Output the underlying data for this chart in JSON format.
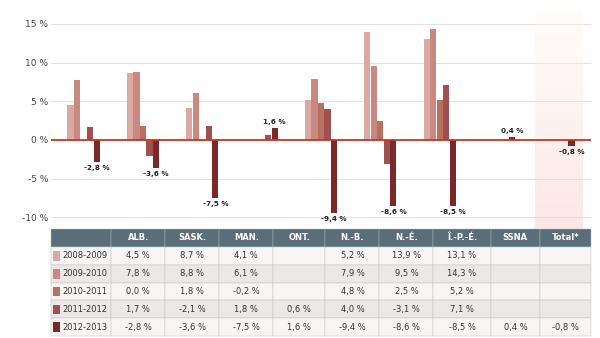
{
  "categories": [
    "ALB.",
    "SASK.",
    "MAN.",
    "ONT.",
    "N.-B.",
    "N.-É.",
    "Î.-P.-É.",
    "SSNA",
    "Total*"
  ],
  "series": [
    {
      "label": "2008-2009",
      "color": "#dba9a4",
      "values": [
        4.5,
        8.7,
        4.1,
        null,
        5.2,
        13.9,
        13.1,
        null,
        null
      ]
    },
    {
      "label": "2009-2010",
      "color": "#c98880",
      "values": [
        7.8,
        8.8,
        6.1,
        null,
        7.9,
        9.5,
        14.3,
        null,
        null
      ]
    },
    {
      "label": "2010-2011",
      "color": "#b87060",
      "values": [
        0.0,
        1.8,
        -0.2,
        null,
        4.8,
        2.5,
        5.2,
        null,
        null
      ]
    },
    {
      "label": "2011-2012",
      "color": "#a05050",
      "values": [
        1.7,
        -2.1,
        1.8,
        0.6,
        4.0,
        -3.1,
        7.1,
        null,
        null
      ]
    },
    {
      "label": "2012-2013",
      "color": "#7a2828",
      "values": [
        -2.8,
        -3.6,
        -7.5,
        1.6,
        -9.4,
        -8.6,
        -8.5,
        0.4,
        -0.8
      ]
    }
  ],
  "bar_labels": [
    {
      "cat_idx": 0,
      "value": -2.8,
      "label": "-2,8 %"
    },
    {
      "cat_idx": 1,
      "value": -3.6,
      "label": "-3,6 %"
    },
    {
      "cat_idx": 2,
      "value": -7.5,
      "label": "-7,5 %"
    },
    {
      "cat_idx": 3,
      "value": 1.6,
      "label": "1,6 %"
    },
    {
      "cat_idx": 4,
      "value": -9.4,
      "label": "-9,4 %"
    },
    {
      "cat_idx": 5,
      "value": -8.6,
      "label": "-8,6 %"
    },
    {
      "cat_idx": 6,
      "value": -8.5,
      "label": "-8,5 %"
    },
    {
      "cat_idx": 7,
      "value": 0.4,
      "label": "0,4 %"
    },
    {
      "cat_idx": 8,
      "value": -0.8,
      "label": "-0,8 %"
    }
  ],
  "table_data": [
    [
      "",
      "ALB.",
      "SASK.",
      "MAN.",
      "ONT.",
      "N.-B.",
      "N.-É.",
      "Î.-P.-É.",
      "SSNA",
      "Total*"
    ],
    [
      "2008-2009",
      "4,5 %",
      "8,7 %",
      "4,1 %",
      "",
      "5,2 %",
      "13,9 %",
      "13,1 %",
      "",
      ""
    ],
    [
      "2009-2010",
      "7,8 %",
      "8,8 %",
      "6,1 %",
      "",
      "7,9 %",
      "9,5 %",
      "14,3 %",
      "",
      ""
    ],
    [
      "2010-2011",
      "0,0 %",
      "1,8 %",
      "-0,2 %",
      "",
      "4,8 %",
      "2,5 %",
      "5,2 %",
      "",
      ""
    ],
    [
      "2011-2012",
      "1,7 %",
      "-2,1 %",
      "1,8 %",
      "0,6 %",
      "4,0 %",
      "-3,1 %",
      "7,1 %",
      "",
      ""
    ],
    [
      "2012-2013",
      "-2,8 %",
      "-3,6 %",
      "-7,5 %",
      "1,6 %",
      "-9,4 %",
      "-8,6 %",
      "-8,5 %",
      "0,4 %",
      "-0,8 %"
    ]
  ],
  "series_colors": [
    "#dba9a4",
    "#c98880",
    "#b87060",
    "#a05050",
    "#7a2828"
  ],
  "ylim": [
    -11.5,
    17
  ],
  "yticks": [
    -10,
    -5,
    0,
    5,
    10,
    15
  ],
  "header_bg": "#5a6e7a",
  "header_fg": "#ffffff",
  "row_bg_even": "#ede8e8",
  "row_bg_odd": "#f8f5f5",
  "zeroline_color": "#c0392b",
  "grid_color": "#d8d8d8",
  "background_color": "#ffffff",
  "total_col_gradient_top": "#e8c0b0",
  "total_col_gradient_bot": "#f8ece8"
}
